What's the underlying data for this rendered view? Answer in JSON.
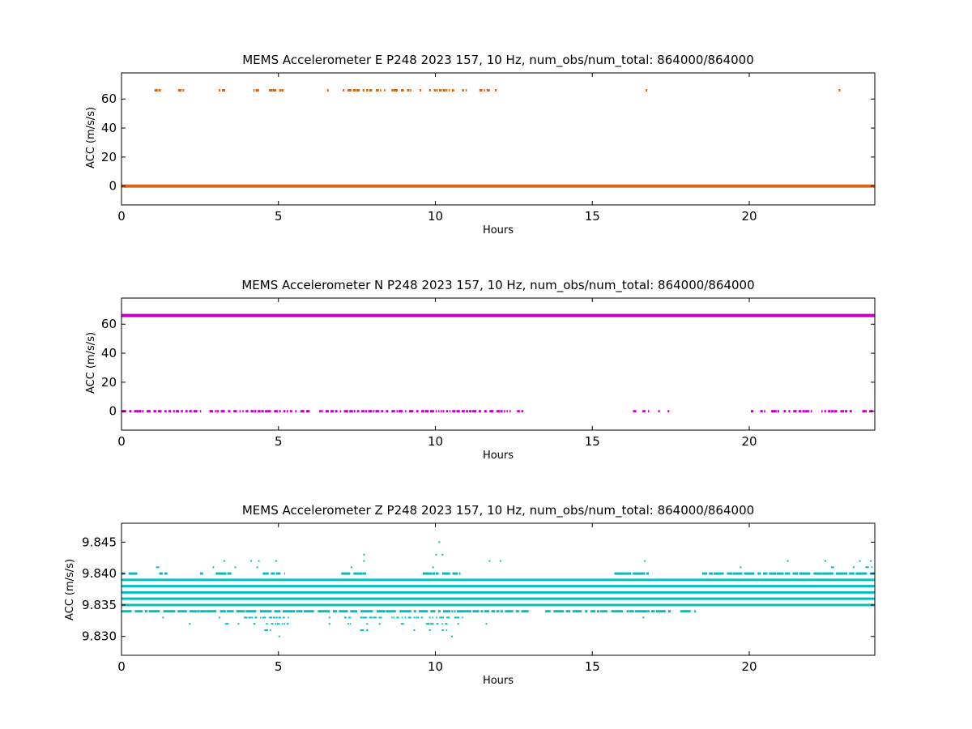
{
  "chart_data": [
    {
      "type": "scatter",
      "title": "MEMS Accelerometer E P248 2023 157, 10 Hz, num_obs/num_total: 864000/864000",
      "xlabel": "Hours",
      "ylabel": "ACC (m/s/s)",
      "xlim": [
        0,
        24
      ],
      "ylim": [
        -13,
        78
      ],
      "xticks": [
        0,
        5,
        10,
        15,
        20
      ],
      "yticks": [
        0,
        20,
        40,
        60
      ],
      "grid": false,
      "series": [
        {
          "color": "#d2691e",
          "bands": [
            {
              "y": 0,
              "x_ranges": [
                [
                  0,
                  24
                ]
              ],
              "solid": true
            }
          ],
          "sparse": [
            {
              "y": 66,
              "x_ranges": [
                [
                  1.05,
                  1.25
                ],
                [
                  1.8,
                  2.0
                ],
                [
                  3.1,
                  3.35
                ],
                [
                  4.2,
                  4.4
                ],
                [
                  4.7,
                  5.2
                ],
                [
                  6.55,
                  6.6
                ],
                [
                  7.05,
                  7.1
                ],
                [
                  7.2,
                  7.7
                ],
                [
                  7.7,
                  8.0
                ],
                [
                  8.1,
                  8.4
                ],
                [
                  8.6,
                  9.0
                ],
                [
                  9.1,
                  9.3
                ],
                [
                  9.5,
                  9.55
                ],
                [
                  9.8,
                  10.6
                ],
                [
                  10.85,
                  11.0
                ],
                [
                  11.4,
                  11.8
                ],
                [
                  11.9,
                  12.05
                ],
                [
                  16.7,
                  16.75
                ],
                [
                  22.85,
                  22.9
                ]
              ]
            }
          ]
        }
      ]
    },
    {
      "type": "scatter",
      "title": "MEMS Accelerometer N P248 2023 157, 10 Hz, num_obs/num_total: 864000/864000",
      "xlabel": "Hours",
      "ylabel": "ACC (m/s/s)",
      "xlim": [
        0,
        24
      ],
      "ylim": [
        -13,
        78
      ],
      "xticks": [
        0,
        5,
        10,
        15,
        20
      ],
      "yticks": [
        0,
        20,
        40,
        60
      ],
      "grid": false,
      "series": [
        {
          "color": "#bf00bf",
          "bands": [
            {
              "y": 66,
              "x_ranges": [
                [
                  0,
                  24
                ]
              ],
              "solid": true
            }
          ],
          "sparse": [
            {
              "y": 0,
              "x_ranges": [
                [
                  0,
                  0.7
                ],
                [
                  0.8,
                  2.5
                ],
                [
                  2.8,
                  4.0
                ],
                [
                  4.0,
                  5.6
                ],
                [
                  5.7,
                  6.0
                ],
                [
                  6.3,
                  6.4
                ],
                [
                  6.5,
                  8.5
                ],
                [
                  8.6,
                  12.4
                ],
                [
                  12.6,
                  12.8
                ],
                [
                  16.3,
                  16.4
                ],
                [
                  16.6,
                  16.8
                ],
                [
                  17.1,
                  17.15
                ],
                [
                  17.4,
                  17.45
                ],
                [
                  20.05,
                  20.15
                ],
                [
                  20.35,
                  20.55
                ],
                [
                  20.7,
                  21.0
                ],
                [
                  21.1,
                  21.3
                ],
                [
                  21.4,
                  22.0
                ],
                [
                  22.3,
                  22.8
                ],
                [
                  22.9,
                  23.3
                ],
                [
                  23.6,
                  24.0
                ]
              ]
            }
          ]
        }
      ]
    },
    {
      "type": "scatter",
      "title": "MEMS Accelerometer Z P248 2023 157, 10 Hz, num_obs/num_total: 864000/864000",
      "xlabel": "Hours",
      "ylabel": "ACC (m/s/s)",
      "xlim": [
        0,
        24
      ],
      "ylim": [
        9.827,
        9.848
      ],
      "xticks": [
        0,
        5,
        10,
        15,
        20
      ],
      "yticks": [
        9.83,
        9.835,
        9.84,
        9.845
      ],
      "grid": false,
      "series": [
        {
          "color": "#00bfbf",
          "bands": [
            {
              "y": 9.834,
              "x_ranges": [
                [
                  0,
                  13.0
                ],
                [
                  13.5,
                  15.5
                ],
                [
                  15.6,
                  17.5
                ],
                [
                  17.8,
                  18.3
                ]
              ],
              "solid": false
            },
            {
              "y": 9.835,
              "x_ranges": [
                [
                  0,
                  24
                ]
              ],
              "solid": true
            },
            {
              "y": 9.836,
              "x_ranges": [
                [
                  0,
                  24
                ]
              ],
              "solid": true
            },
            {
              "y": 9.837,
              "x_ranges": [
                [
                  0,
                  24
                ]
              ],
              "solid": true
            },
            {
              "y": 9.838,
              "x_ranges": [
                [
                  0,
                  24
                ]
              ],
              "solid": true
            },
            {
              "y": 9.839,
              "x_ranges": [
                [
                  0,
                  24
                ]
              ],
              "solid": true
            },
            {
              "y": 9.84,
              "x_ranges": [
                [
                  0,
                  0.5
                ],
                [
                  1.2,
                  1.5
                ],
                [
                  2.5,
                  2.6
                ],
                [
                  3.0,
                  3.5
                ],
                [
                  4.5,
                  5.2
                ],
                [
                  7.0,
                  7.8
                ],
                [
                  9.6,
                  10.8
                ],
                [
                  15.7,
                  16.8
                ],
                [
                  18.5,
                  24.0
                ]
              ],
              "solid": false
            }
          ],
          "sparse": [
            {
              "y": 9.833,
              "x_ranges": [
                [
                  1.3,
                  1.35
                ],
                [
                  3.1,
                  3.15
                ],
                [
                  3.9,
                  4.6
                ],
                [
                  4.7,
                  5.3
                ],
                [
                  6.6,
                  6.65
                ],
                [
                  7.1,
                  7.3
                ],
                [
                  7.6,
                  8.3
                ],
                [
                  8.6,
                  9.6
                ],
                [
                  9.8,
                  10.5
                ],
                [
                  10.6,
                  10.9
                ],
                [
                  16.6,
                  16.65
                ]
              ]
            },
            {
              "y": 9.832,
              "x_ranges": [
                [
                  2.15,
                  2.2
                ],
                [
                  3.3,
                  3.5
                ],
                [
                  3.7,
                  3.75
                ],
                [
                  4.2,
                  4.3
                ],
                [
                  4.6,
                  5.4
                ],
                [
                  6.6,
                  6.65
                ],
                [
                  7.2,
                  7.3
                ],
                [
                  7.8,
                  7.85
                ],
                [
                  8.2,
                  8.25
                ],
                [
                  8.9,
                  9.0
                ],
                [
                  9.7,
                  10.1
                ],
                [
                  10.2,
                  10.4
                ],
                [
                  10.7,
                  10.75
                ],
                [
                  11.6,
                  11.65
                ]
              ]
            },
            {
              "y": 9.831,
              "x_ranges": [
                [
                  4.55,
                  4.75
                ],
                [
                  7.6,
                  7.85
                ],
                [
                  9.3,
                  9.35
                ],
                [
                  9.8,
                  9.85
                ],
                [
                  10.2,
                  10.35
                ]
              ]
            },
            {
              "y": 9.83,
              "x_ranges": [
                [
                  5.0,
                  5.05
                ],
                [
                  10.5,
                  10.55
                ]
              ]
            },
            {
              "y": 9.841,
              "x_ranges": [
                [
                  1.1,
                  1.15
                ],
                [
                  1.15,
                  1.2
                ],
                [
                  2.9,
                  2.95
                ],
                [
                  3.6,
                  3.65
                ],
                [
                  4.3,
                  4.35
                ],
                [
                  7.3,
                  7.35
                ],
                [
                  9.9,
                  9.95
                ],
                [
                  19.7,
                  19.75
                ],
                [
                  22.6,
                  22.7
                ],
                [
                  23.3,
                  23.35
                ],
                [
                  23.7,
                  24.0
                ]
              ]
            },
            {
              "y": 9.842,
              "x_ranges": [
                [
                  3.25,
                  3.3
                ],
                [
                  4.1,
                  4.15
                ],
                [
                  4.35,
                  4.4
                ],
                [
                  4.9,
                  4.95
                ],
                [
                  7.7,
                  7.75
                ],
                [
                  11.7,
                  11.75
                ],
                [
                  12.05,
                  12.1
                ],
                [
                  16.65,
                  16.7
                ],
                [
                  21.2,
                  21.25
                ],
                [
                  22.4,
                  22.45
                ],
                [
                  23.5,
                  23.55
                ],
                [
                  23.85,
                  23.9
                ]
              ]
            },
            {
              "y": 9.843,
              "x_ranges": [
                [
                  7.7,
                  7.75
                ],
                [
                  10.0,
                  10.05
                ],
                [
                  10.2,
                  10.25
                ]
              ]
            },
            {
              "y": 9.845,
              "x_ranges": [
                [
                  10.1,
                  10.15
                ]
              ]
            }
          ]
        }
      ]
    }
  ]
}
